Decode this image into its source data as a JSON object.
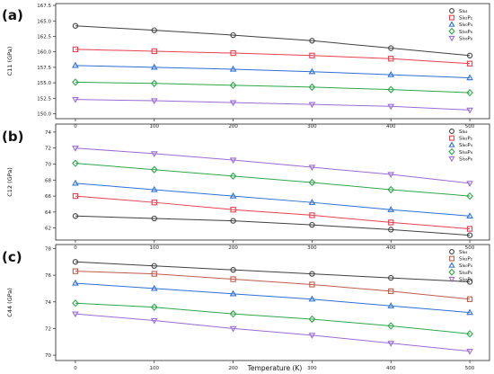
{
  "figure": {
    "xlabel": "Temperature (K)",
    "x_ticks": [
      "0",
      "100",
      "200",
      "300",
      "400",
      "500"
    ]
  },
  "chart_data": [
    {
      "type": "line",
      "panel_label": "(a)",
      "ylabel": "C11 (GPa)",
      "x": [
        0,
        100,
        200,
        300,
        400,
        500
      ],
      "ylim": [
        149.2,
        167.8
      ],
      "yticks": [
        150.0,
        152.5,
        155.0,
        157.5,
        160.0,
        162.5,
        165.0,
        167.5
      ],
      "ytick_labels": [
        "150.0",
        "152.5",
        "155.0",
        "157.5",
        "160.0",
        "162.5",
        "165.0",
        "167.5"
      ],
      "grid": false,
      "legend_position": "top-right",
      "series": [
        {
          "name": "Si₆₄",
          "marker": "circle",
          "color": "#404040",
          "values": [
            164.2,
            163.5,
            162.7,
            161.8,
            160.6,
            159.4
          ]
        },
        {
          "name": "Si₆₂P₂",
          "marker": "square",
          "color": "#e8404f",
          "values": [
            160.4,
            160.1,
            159.8,
            159.4,
            158.9,
            158.1
          ]
        },
        {
          "name": "Si₆₀P₄",
          "marker": "triangle-up",
          "color": "#2e6fd6",
          "values": [
            157.8,
            157.5,
            157.2,
            156.8,
            156.3,
            155.8
          ]
        },
        {
          "name": "Si₅₈P₆",
          "marker": "diamond",
          "color": "#2ea84a",
          "values": [
            155.1,
            154.9,
            154.6,
            154.3,
            153.9,
            153.4
          ]
        },
        {
          "name": "Si₅₆P₈",
          "marker": "triangle-down",
          "color": "#9b6bd6",
          "values": [
            152.3,
            152.1,
            151.8,
            151.5,
            151.2,
            150.6
          ]
        }
      ]
    },
    {
      "type": "line",
      "panel_label": "(b)",
      "ylabel": "C12 (GPa)",
      "x": [
        0,
        100,
        200,
        300,
        400,
        500
      ],
      "ylim": [
        60.5,
        75.0
      ],
      "yticks": [
        62,
        64,
        66,
        68,
        70,
        72,
        74
      ],
      "ytick_labels": [
        "62",
        "64",
        "66",
        "68",
        "70",
        "72",
        "74"
      ],
      "grid": false,
      "legend_position": "top-right",
      "series": [
        {
          "name": "Si₆₄",
          "marker": "circle",
          "color": "#404040",
          "values": [
            63.5,
            63.2,
            62.9,
            62.4,
            61.8,
            61.1
          ]
        },
        {
          "name": "Si₆₂P₂",
          "marker": "square",
          "color": "#e8404f",
          "values": [
            66.0,
            65.2,
            64.3,
            63.6,
            62.7,
            61.9
          ]
        },
        {
          "name": "Si₆₀P₄",
          "marker": "triangle-up",
          "color": "#2e6fd6",
          "values": [
            67.6,
            66.8,
            66.0,
            65.2,
            64.3,
            63.5
          ]
        },
        {
          "name": "Si₅₈P₆",
          "marker": "diamond",
          "color": "#2ea84a",
          "values": [
            70.1,
            69.3,
            68.5,
            67.7,
            66.8,
            66.0
          ]
        },
        {
          "name": "Si₅₆P₈",
          "marker": "triangle-down",
          "color": "#9b6bd6",
          "values": [
            72.0,
            71.3,
            70.5,
            69.6,
            68.7,
            67.6
          ]
        }
      ]
    },
    {
      "type": "line",
      "panel_label": "(c)",
      "ylabel": "C44 (GPa)",
      "x": [
        0,
        100,
        200,
        300,
        400,
        500
      ],
      "ylim": [
        69.6,
        78.3
      ],
      "yticks": [
        70,
        72,
        74,
        76,
        78
      ],
      "ytick_labels": [
        "70",
        "72",
        "74",
        "76",
        "78"
      ],
      "grid": false,
      "legend_position": "top-right",
      "series": [
        {
          "name": "Si₆₄",
          "marker": "circle",
          "color": "#404040",
          "values": [
            77.0,
            76.7,
            76.4,
            76.1,
            75.8,
            75.5
          ]
        },
        {
          "name": "Si₆₂P₂",
          "marker": "square",
          "color": "#c05c4c",
          "values": [
            76.3,
            76.1,
            75.7,
            75.3,
            74.8,
            74.2
          ]
        },
        {
          "name": "Si₆₀P₄",
          "marker": "triangle-up",
          "color": "#2e6fd6",
          "values": [
            75.4,
            75.0,
            74.6,
            74.2,
            73.7,
            73.2
          ]
        },
        {
          "name": "Si₅₈P₆",
          "marker": "diamond",
          "color": "#2ea84a",
          "values": [
            73.9,
            73.6,
            73.1,
            72.7,
            72.2,
            71.6
          ]
        },
        {
          "name": "Si₅₆P₈",
          "marker": "triangle-down",
          "color": "#9b6bd6",
          "values": [
            73.1,
            72.6,
            72.0,
            71.5,
            70.9,
            70.3
          ]
        }
      ]
    }
  ]
}
